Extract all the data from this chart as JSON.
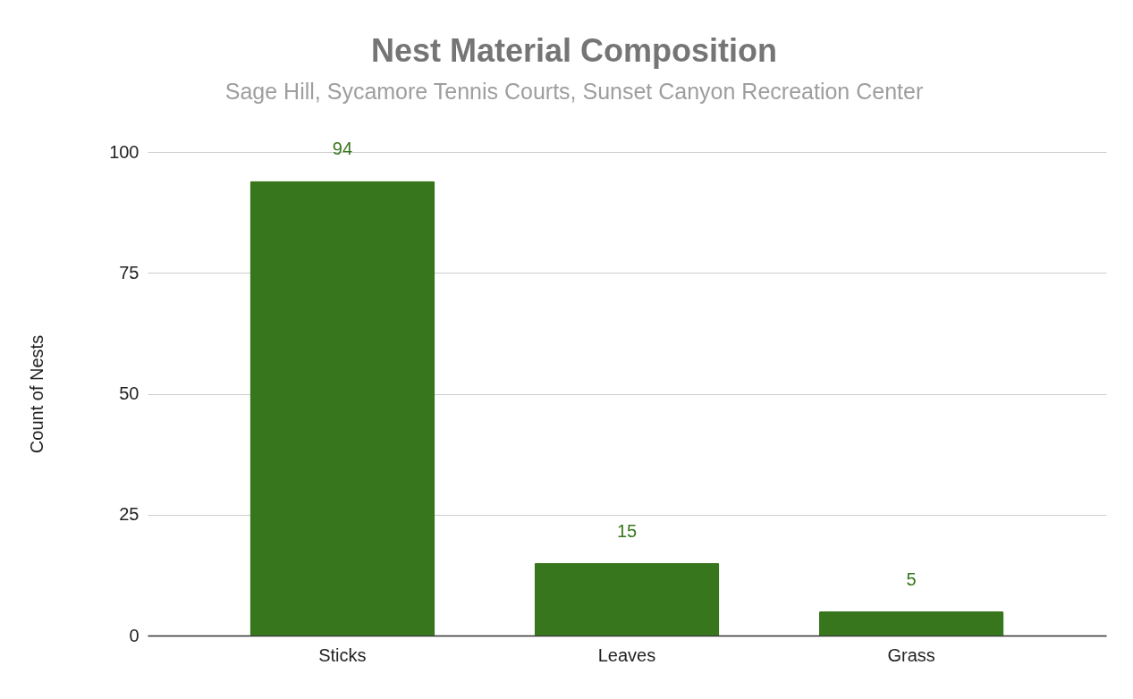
{
  "chart_data": {
    "type": "bar",
    "title": "Nest Material Composition",
    "subtitle": "Sage Hill, Sycamore Tennis Courts, Sunset Canyon Recreation Center",
    "ylabel": "Count of Nests",
    "categories": [
      "Sticks",
      "Leaves",
      "Grass"
    ],
    "values": [
      94,
      15,
      5
    ],
    "color": "#38761d",
    "ylim": [
      0,
      100
    ],
    "yticks": [
      0,
      25,
      50,
      75,
      100
    ],
    "grid": "y",
    "data_labels": true
  }
}
